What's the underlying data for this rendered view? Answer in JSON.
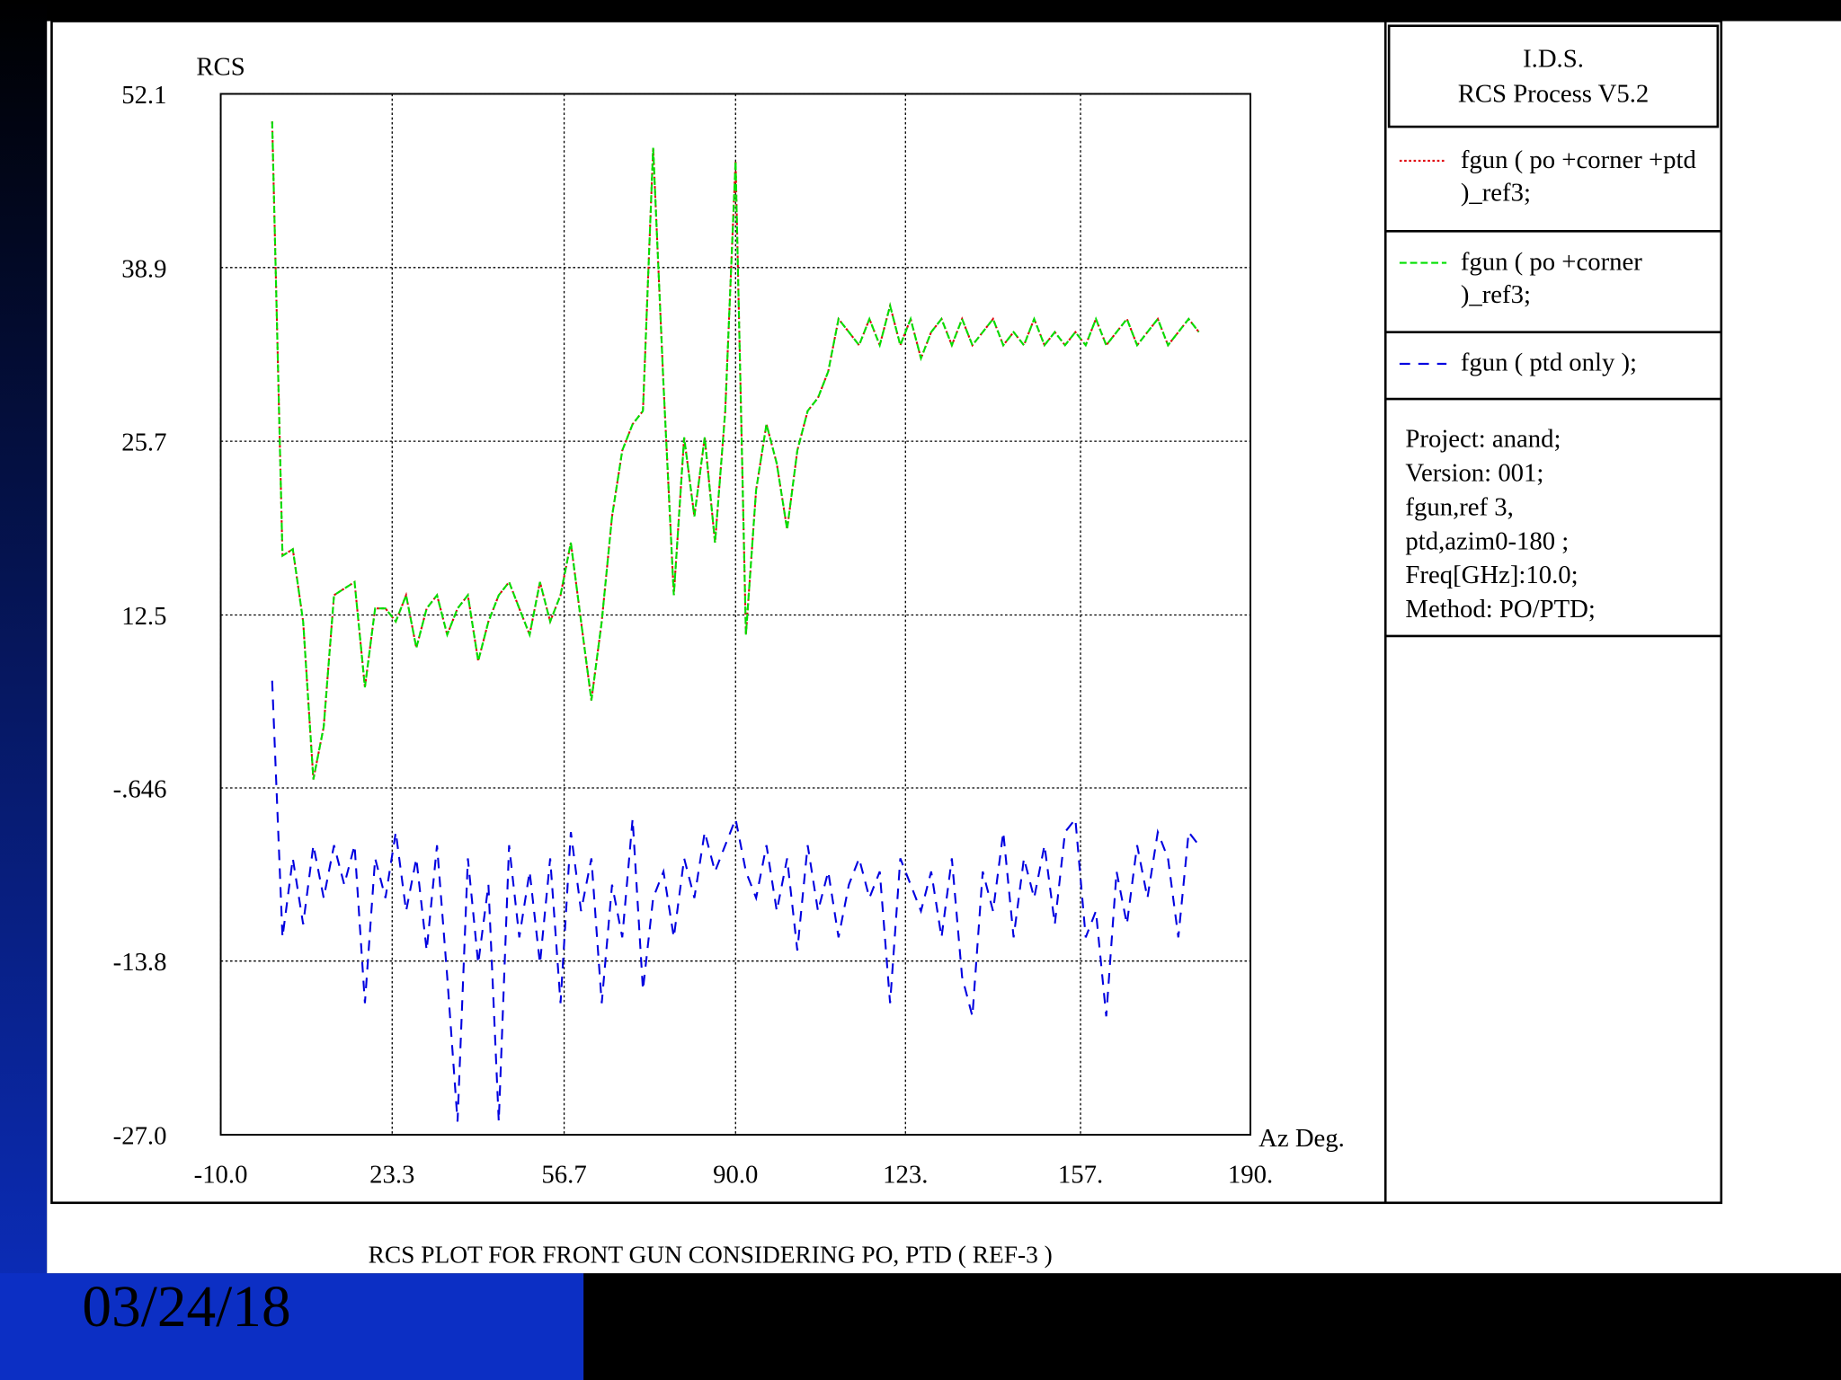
{
  "chart_data": {
    "type": "line",
    "title": "RCS  PLOT FOR FRONT GUN CONSIDERING PO, PTD ( REF-3 )",
    "ylabel": "RCS",
    "xlabel": "Az Deg.",
    "header": [
      "I.D.S.",
      "RCS Process V5.2"
    ],
    "notes": [
      "Project: anand;",
      "Version: 001;",
      "fgun,ref 3,",
      "ptd,azim0-180 ;",
      "Freq[GHz]:10.0;",
      "Method: PO/PTD;"
    ],
    "xlim": [
      -10,
      190
    ],
    "xticks": [
      {
        "value": -10,
        "label": "-10.0"
      },
      23.3,
      56.7,
      {
        "value": 90,
        "label": "90.0"
      },
      {
        "value": 123,
        "label": "123."
      },
      {
        "value": 157,
        "label": "157."
      },
      {
        "value": 190,
        "label": "190."
      }
    ],
    "ylim": [
      -27,
      52.1
    ],
    "yticks": [
      {
        "value": -27,
        "label": "-27.0"
      },
      -13.8,
      {
        "value": -0.646,
        "label": "-.646"
      },
      12.5,
      25.7,
      38.9,
      52.1
    ],
    "grid": true,
    "x": [
      0,
      2,
      4,
      6,
      8,
      10,
      12,
      14,
      16,
      18,
      20,
      22,
      24,
      26,
      28,
      30,
      32,
      34,
      36,
      38,
      40,
      42,
      44,
      46,
      48,
      50,
      52,
      54,
      56,
      58,
      60,
      62,
      64,
      66,
      68,
      70,
      72,
      74,
      76,
      78,
      80,
      82,
      84,
      86,
      88,
      90,
      92,
      94,
      96,
      98,
      100,
      102,
      104,
      106,
      108,
      110,
      112,
      114,
      116,
      118,
      120,
      122,
      124,
      126,
      128,
      130,
      132,
      134,
      136,
      138,
      140,
      142,
      144,
      146,
      148,
      150,
      152,
      154,
      156,
      158,
      160,
      162,
      164,
      166,
      168,
      170,
      172,
      174,
      176,
      178,
      180
    ],
    "series": [
      {
        "name": "fgun ( po +corner +ptd\n)_ref3;",
        "color": "#e0000a",
        "linestyle": "dotted",
        "values": [
          50,
          17,
          17.5,
          12,
          0,
          4,
          14,
          14.5,
          15,
          7,
          13,
          13,
          12,
          14,
          10,
          13,
          14,
          11,
          13,
          14,
          9,
          12,
          14,
          15,
          13,
          11,
          15,
          12,
          14,
          18,
          12,
          6,
          12,
          20,
          25,
          27,
          28,
          48,
          30,
          14,
          26,
          20,
          26,
          18,
          28,
          47,
          11,
          22,
          27,
          24,
          19,
          25,
          28,
          29,
          31,
          35,
          34,
          33,
          35,
          33,
          36,
          33,
          35,
          32,
          34,
          35,
          33,
          35,
          33,
          34,
          35,
          33,
          34,
          33,
          35,
          33,
          34,
          33,
          34,
          33,
          35,
          33,
          34,
          35,
          33,
          34,
          35,
          33,
          34,
          35,
          34
        ]
      },
      {
        "name": "fgun ( po +corner\n)_ref3;",
        "color": "#00e000",
        "linestyle": "dashed",
        "values": [
          50,
          17,
          17.5,
          12,
          0,
          4,
          14,
          14.5,
          15,
          7,
          13,
          13,
          12,
          14,
          10,
          13,
          14,
          11,
          13,
          14,
          9,
          12,
          14,
          15,
          13,
          11,
          15,
          12,
          14,
          18,
          12,
          6,
          12,
          20,
          25,
          27,
          28,
          48,
          30,
          14,
          26,
          20,
          26,
          18,
          28,
          47,
          11,
          22,
          27,
          24,
          19,
          25,
          28,
          29,
          31,
          35,
          34,
          33,
          35,
          33,
          36,
          33,
          35,
          32,
          34,
          35,
          33,
          35,
          33,
          34,
          35,
          33,
          34,
          33,
          35,
          33,
          34,
          33,
          34,
          33,
          35,
          33,
          34,
          35,
          33,
          34,
          35,
          33,
          34,
          35,
          34
        ]
      },
      {
        "name": "fgun ( ptd only );",
        "color": "#0000e0",
        "linestyle": "longdash",
        "values": [
          7.5,
          -12,
          -6,
          -11,
          -5,
          -9,
          -5,
          -8,
          -5,
          -17,
          -6,
          -9,
          -4,
          -10,
          -6,
          -13,
          -5,
          -15,
          -26,
          -6,
          -14,
          -8,
          -26,
          -5,
          -12,
          -7,
          -14,
          -6,
          -17,
          -4,
          -10,
          -6,
          -17,
          -8,
          -12,
          -3,
          -16,
          -9,
          -7,
          -12,
          -6,
          -9,
          -4,
          -7,
          -5,
          -3,
          -7,
          -9,
          -5,
          -10,
          -6,
          -13,
          -5,
          -10,
          -7,
          -12,
          -8,
          -6,
          -9,
          -7,
          -17,
          -6,
          -8,
          -10,
          -7,
          -12,
          -6,
          -15,
          -18,
          -7,
          -10,
          -4,
          -12,
          -6,
          -9,
          -5,
          -11,
          -4,
          -3,
          -12,
          -10,
          -18,
          -7,
          -11,
          -5,
          -9,
          -4,
          -6,
          -12,
          -4,
          -5
        ]
      }
    ]
  },
  "date": "03/24/18"
}
